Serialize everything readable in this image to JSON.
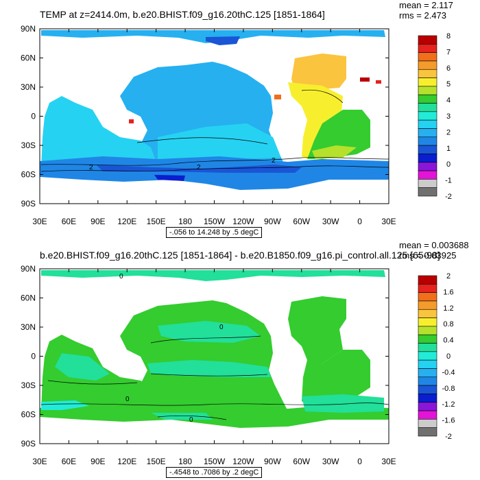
{
  "panels": [
    {
      "title": "TEMP at z=2414.0m, b.e20.BHIST.f09_g16.20thC.125 [1851-1864]",
      "stats": {
        "mean": "mean = 2.117",
        "rms": "rms = 2.473"
      },
      "range_label": "-.056 to 14.248 by .5 degC",
      "colorbar": {
        "labels": [
          "8",
          "7",
          "6",
          "5",
          "4",
          "3",
          "2",
          "1",
          "0",
          "-1",
          "-2"
        ],
        "colors": [
          "#b90000",
          "#e5231f",
          "#f06e1c",
          "#f59b2b",
          "#fbc43e",
          "#f7ef2e",
          "#b5e12d",
          "#34cc2f",
          "#22df9a",
          "#22ecd8",
          "#26d2f2",
          "#26b0f0",
          "#1f86e6",
          "#1a55d6",
          "#0a1ed0",
          "#8a16d9",
          "#e314d8",
          "#cccccc",
          "#707070"
        ]
      },
      "contour_labels": [
        "2",
        "2",
        "2"
      ]
    },
    {
      "title": "b.e20.BHIST.f09_g16.20thC.125 [1851-1864] - b.e20.B1850.f09_g16.pi_control.all.125 [65-98]",
      "stats": {
        "mean": "mean = 0.003688",
        "rms": "rms = 0.03925"
      },
      "range_label": "-.4548 to .7086 by .2 degC",
      "colorbar": {
        "labels": [
          "2",
          "1.6",
          "1.2",
          "0.8",
          "0.4",
          "0",
          "-0.4",
          "-0.8",
          "-1.2",
          "-1.6",
          "-2"
        ],
        "colors": [
          "#b90000",
          "#e5231f",
          "#f06e1c",
          "#f59b2b",
          "#fbc43e",
          "#f7ef2e",
          "#b5e12d",
          "#34cc2f",
          "#22df9a",
          "#22ecd8",
          "#26d2f2",
          "#26b0f0",
          "#1f86e6",
          "#1a55d6",
          "#0a1ed0",
          "#8a16d9",
          "#e314d8",
          "#cccccc",
          "#707070"
        ]
      },
      "contour_labels": [
        "0",
        "0",
        "0",
        "0"
      ]
    }
  ],
  "axes": {
    "lat_ticks": [
      "90N",
      "60N",
      "30N",
      "0",
      "30S",
      "60S",
      "90S"
    ],
    "lon_ticks": [
      "30E",
      "60E",
      "90E",
      "120E",
      "150E",
      "180",
      "150W",
      "120W",
      "90W",
      "60W",
      "30W",
      "0",
      "30E"
    ]
  },
  "colors": {
    "land": "#ffffff",
    "top_pacific": "#26b0f0",
    "top_indian": "#26d2f2",
    "top_southern": "#1f86e6",
    "top_atlantic": "#f7ef2e",
    "top_south_atlantic": "#34cc2f",
    "bottom_ocean": "#34cc2f",
    "bottom_cool": "#22df9a"
  }
}
